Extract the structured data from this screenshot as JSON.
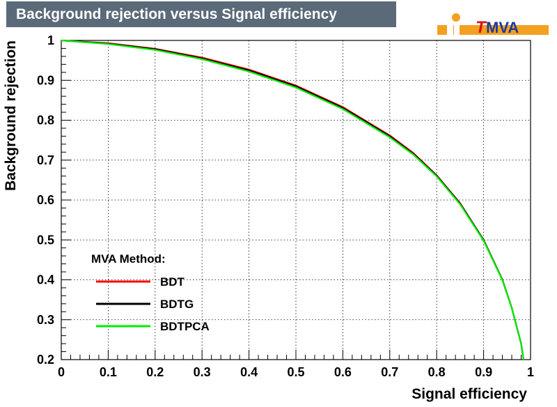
{
  "header": {
    "title": "Background rejection versus Signal efficiency"
  },
  "logo": {
    "prefix": "T",
    "rest": "MVA",
    "icon": "tmva-logo-icon"
  },
  "chart_data": {
    "type": "line",
    "title": "Background rejection versus Signal efficiency",
    "xlabel": "Signal efficiency",
    "ylabel": "Background rejection",
    "xlim": [
      0,
      1
    ],
    "ylim": [
      0.2,
      1
    ],
    "grid": true,
    "x_ticks": [
      "0",
      "0.1",
      "0.2",
      "0.3",
      "0.4",
      "0.5",
      "0.6",
      "0.7",
      "0.8",
      "0.9",
      "1"
    ],
    "y_ticks": [
      "0.2",
      "0.3",
      "0.4",
      "0.5",
      "0.6",
      "0.7",
      "0.8",
      "0.9",
      "1"
    ],
    "legend": {
      "title": "MVA Method:",
      "placement": "bottom-left",
      "entries": [
        {
          "name": "BDT",
          "color": "#ff0000"
        },
        {
          "name": "BDTG",
          "color": "#000000"
        },
        {
          "name": "BDTPCA",
          "color": "#00ee00"
        }
      ]
    },
    "series": [
      {
        "name": "BDT",
        "color": "#ff0000",
        "x": [
          0,
          0.1,
          0.2,
          0.3,
          0.4,
          0.5,
          0.6,
          0.7,
          0.75,
          0.8,
          0.85,
          0.9,
          0.94,
          0.96,
          0.98,
          0.985
        ],
        "y": [
          1,
          0.993,
          0.979,
          0.957,
          0.927,
          0.887,
          0.833,
          0.762,
          0.718,
          0.662,
          0.592,
          0.5,
          0.4,
          0.33,
          0.24,
          0.2
        ]
      },
      {
        "name": "BDTG",
        "color": "#000000",
        "x": [
          0,
          0.1,
          0.2,
          0.3,
          0.4,
          0.5,
          0.6,
          0.7,
          0.75,
          0.8,
          0.85,
          0.9,
          0.94,
          0.96,
          0.98,
          0.985
        ],
        "y": [
          1,
          0.992,
          0.978,
          0.955,
          0.925,
          0.885,
          0.831,
          0.76,
          0.716,
          0.661,
          0.591,
          0.5,
          0.4,
          0.33,
          0.24,
          0.2
        ]
      },
      {
        "name": "BDTPCA",
        "color": "#00ee00",
        "x": [
          0,
          0.1,
          0.2,
          0.3,
          0.4,
          0.5,
          0.6,
          0.7,
          0.75,
          0.8,
          0.85,
          0.9,
          0.94,
          0.96,
          0.98,
          0.985
        ],
        "y": [
          1,
          0.991,
          0.976,
          0.953,
          0.922,
          0.882,
          0.828,
          0.757,
          0.714,
          0.659,
          0.589,
          0.498,
          0.399,
          0.33,
          0.24,
          0.2
        ]
      }
    ]
  }
}
